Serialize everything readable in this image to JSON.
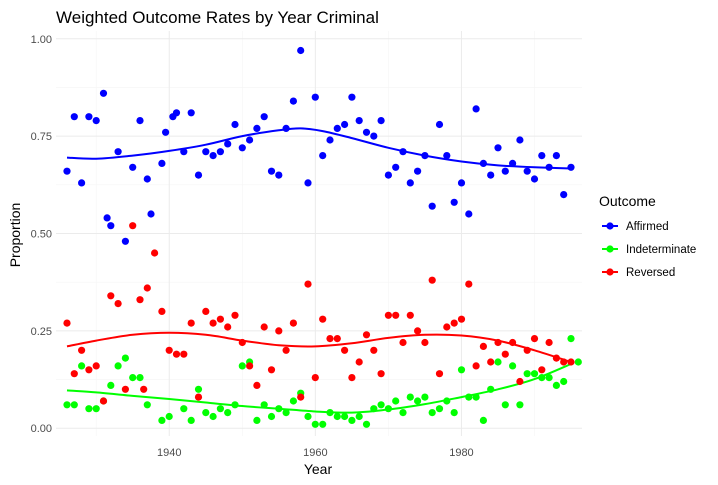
{
  "chart_data": {
    "type": "scatter",
    "title": "Weighted Outcome Rates by Year Criminal",
    "xlabel": "Year",
    "ylabel": "Proportion",
    "xlim": [
      1924.5,
      1996.5
    ],
    "ylim": [
      -0.02,
      1.02
    ],
    "x_ticks": [
      1940,
      1960,
      1980
    ],
    "y_ticks": [
      0.0,
      0.25,
      0.5,
      0.75,
      1.0
    ],
    "y_tick_labels": [
      "0.00",
      "0.25",
      "0.50",
      "0.75",
      "1.00"
    ],
    "grid": true,
    "legend": {
      "title": "Outcome",
      "position": "right"
    },
    "series": [
      {
        "name": "Affirmed",
        "color": "#0000ff",
        "points": [
          [
            1926,
            0.66
          ],
          [
            1927,
            0.8
          ],
          [
            1928,
            0.63
          ],
          [
            1929,
            0.8
          ],
          [
            1930,
            0.79
          ],
          [
            1931,
            0.86
          ],
          [
            1931.5,
            0.54
          ],
          [
            1932,
            0.52
          ],
          [
            1933,
            0.71
          ],
          [
            1934,
            0.48
          ],
          [
            1935,
            0.67
          ],
          [
            1936,
            0.79
          ],
          [
            1937,
            0.64
          ],
          [
            1937.5,
            0.55
          ],
          [
            1939,
            0.68
          ],
          [
            1939.5,
            0.76
          ],
          [
            1940.5,
            0.8
          ],
          [
            1941,
            0.81
          ],
          [
            1942,
            0.71
          ],
          [
            1943,
            0.81
          ],
          [
            1944,
            0.65
          ],
          [
            1945,
            0.71
          ],
          [
            1946,
            0.7
          ],
          [
            1947,
            0.71
          ],
          [
            1948,
            0.73
          ],
          [
            1949,
            0.78
          ],
          [
            1950,
            0.72
          ],
          [
            1951,
            0.74
          ],
          [
            1952,
            0.77
          ],
          [
            1953,
            0.8
          ],
          [
            1954,
            0.66
          ],
          [
            1955,
            0.65
          ],
          [
            1956,
            0.77
          ],
          [
            1957,
            0.84
          ],
          [
            1958,
            0.97
          ],
          [
            1959,
            0.63
          ],
          [
            1960,
            0.85
          ],
          [
            1961,
            0.7
          ],
          [
            1962,
            0.74
          ],
          [
            1963,
            0.77
          ],
          [
            1964,
            0.78
          ],
          [
            1965,
            0.85
          ],
          [
            1966,
            0.79
          ],
          [
            1967,
            0.76
          ],
          [
            1968,
            0.75
          ],
          [
            1969,
            0.79
          ],
          [
            1970,
            0.65
          ],
          [
            1971,
            0.67
          ],
          [
            1972,
            0.71
          ],
          [
            1973,
            0.63
          ],
          [
            1974,
            0.66
          ],
          [
            1975,
            0.7
          ],
          [
            1976,
            0.57
          ],
          [
            1977,
            0.78
          ],
          [
            1978,
            0.7
          ],
          [
            1979,
            0.58
          ],
          [
            1980,
            0.63
          ],
          [
            1981,
            0.55
          ],
          [
            1982,
            0.82
          ],
          [
            1983,
            0.68
          ],
          [
            1984,
            0.65
          ],
          [
            1985,
            0.72
          ],
          [
            1986,
            0.66
          ],
          [
            1987,
            0.68
          ],
          [
            1988,
            0.74
          ],
          [
            1989,
            0.66
          ],
          [
            1990,
            0.64
          ],
          [
            1991,
            0.7
          ],
          [
            1992,
            0.67
          ],
          [
            1993,
            0.7
          ],
          [
            1994,
            0.6
          ],
          [
            1995,
            0.67
          ]
        ],
        "trend": [
          [
            1926,
            0.695
          ],
          [
            1930,
            0.692
          ],
          [
            1935,
            0.7
          ],
          [
            1940,
            0.712
          ],
          [
            1945,
            0.728
          ],
          [
            1950,
            0.75
          ],
          [
            1955,
            0.765
          ],
          [
            1958,
            0.77
          ],
          [
            1961,
            0.763
          ],
          [
            1965,
            0.745
          ],
          [
            1970,
            0.72
          ],
          [
            1975,
            0.7
          ],
          [
            1980,
            0.685
          ],
          [
            1985,
            0.675
          ],
          [
            1990,
            0.67
          ],
          [
            1995,
            0.667
          ]
        ]
      },
      {
        "name": "Indeterminate",
        "color": "#00ff00",
        "points": [
          [
            1926,
            0.06
          ],
          [
            1927,
            0.06
          ],
          [
            1928,
            0.16
          ],
          [
            1929,
            0.05
          ],
          [
            1930,
            0.05
          ],
          [
            1931,
            0.07
          ],
          [
            1932,
            0.11
          ],
          [
            1933,
            0.16
          ],
          [
            1934,
            0.18
          ],
          [
            1935,
            0.13
          ],
          [
            1936,
            0.13
          ],
          [
            1937,
            0.06
          ],
          [
            1939,
            0.02
          ],
          [
            1940,
            0.03
          ],
          [
            1942,
            0.05
          ],
          [
            1943,
            0.02
          ],
          [
            1944,
            0.1
          ],
          [
            1945,
            0.04
          ],
          [
            1946,
            0.03
          ],
          [
            1947,
            0.05
          ],
          [
            1948,
            0.04
          ],
          [
            1949,
            0.06
          ],
          [
            1950,
            0.16
          ],
          [
            1951,
            0.17
          ],
          [
            1952,
            0.02
          ],
          [
            1953,
            0.06
          ],
          [
            1954,
            0.03
          ],
          [
            1955,
            0.05
          ],
          [
            1956,
            0.04
          ],
          [
            1957,
            0.07
          ],
          [
            1958,
            0.09
          ],
          [
            1959,
            0.03
          ],
          [
            1960,
            0.01
          ],
          [
            1961,
            0.01
          ],
          [
            1962,
            0.04
          ],
          [
            1963,
            0.03
          ],
          [
            1964,
            0.03
          ],
          [
            1965,
            0.02
          ],
          [
            1966,
            0.03
          ],
          [
            1967,
            0.01
          ],
          [
            1968,
            0.05
          ],
          [
            1969,
            0.06
          ],
          [
            1970,
            0.05
          ],
          [
            1971,
            0.07
          ],
          [
            1972,
            0.04
          ],
          [
            1973,
            0.08
          ],
          [
            1974,
            0.07
          ],
          [
            1975,
            0.08
          ],
          [
            1976,
            0.04
          ],
          [
            1977,
            0.05
          ],
          [
            1978,
            0.07
          ],
          [
            1979,
            0.04
          ],
          [
            1980,
            0.15
          ],
          [
            1981,
            0.08
          ],
          [
            1982,
            0.08
          ],
          [
            1983,
            0.02
          ],
          [
            1984,
            0.1
          ],
          [
            1985,
            0.17
          ],
          [
            1986,
            0.06
          ],
          [
            1987,
            0.16
          ],
          [
            1988,
            0.06
          ],
          [
            1989,
            0.14
          ],
          [
            1990,
            0.14
          ],
          [
            1991,
            0.13
          ],
          [
            1992,
            0.13
          ],
          [
            1993,
            0.11
          ],
          [
            1994,
            0.12
          ],
          [
            1995,
            0.23
          ],
          [
            1996,
            0.17
          ]
        ],
        "trend": [
          [
            1926,
            0.097
          ],
          [
            1930,
            0.092
          ],
          [
            1935,
            0.083
          ],
          [
            1940,
            0.075
          ],
          [
            1945,
            0.066
          ],
          [
            1950,
            0.057
          ],
          [
            1955,
            0.05
          ],
          [
            1960,
            0.043
          ],
          [
            1965,
            0.04
          ],
          [
            1970,
            0.048
          ],
          [
            1975,
            0.062
          ],
          [
            1980,
            0.08
          ],
          [
            1985,
            0.1
          ],
          [
            1990,
            0.126
          ],
          [
            1995,
            0.165
          ]
        ]
      },
      {
        "name": "Reversed",
        "color": "#ff0000",
        "points": [
          [
            1926,
            0.27
          ],
          [
            1927,
            0.14
          ],
          [
            1928,
            0.2
          ],
          [
            1929,
            0.15
          ],
          [
            1930,
            0.16
          ],
          [
            1931,
            0.07
          ],
          [
            1932,
            0.34
          ],
          [
            1933,
            0.32
          ],
          [
            1934,
            0.1
          ],
          [
            1935,
            0.52
          ],
          [
            1936,
            0.33
          ],
          [
            1936.5,
            0.1
          ],
          [
            1937,
            0.36
          ],
          [
            1938,
            0.45
          ],
          [
            1939,
            0.3
          ],
          [
            1940,
            0.2
          ],
          [
            1941,
            0.19
          ],
          [
            1942,
            0.19
          ],
          [
            1943,
            0.27
          ],
          [
            1944,
            0.08
          ],
          [
            1945,
            0.3
          ],
          [
            1946,
            0.27
          ],
          [
            1947,
            0.28
          ],
          [
            1948,
            0.26
          ],
          [
            1949,
            0.29
          ],
          [
            1950,
            0.22
          ],
          [
            1951,
            0.16
          ],
          [
            1952,
            0.11
          ],
          [
            1953,
            0.26
          ],
          [
            1954,
            0.15
          ],
          [
            1955,
            0.25
          ],
          [
            1956,
            0.2
          ],
          [
            1957,
            0.27
          ],
          [
            1958,
            0.08
          ],
          [
            1959,
            0.37
          ],
          [
            1960,
            0.13
          ],
          [
            1961,
            0.28
          ],
          [
            1962,
            0.23
          ],
          [
            1963,
            0.23
          ],
          [
            1964,
            0.2
          ],
          [
            1965,
            0.13
          ],
          [
            1966,
            0.17
          ],
          [
            1967,
            0.24
          ],
          [
            1968,
            0.2
          ],
          [
            1969,
            0.14
          ],
          [
            1970,
            0.29
          ],
          [
            1971,
            0.29
          ],
          [
            1972,
            0.22
          ],
          [
            1973,
            0.29
          ],
          [
            1974,
            0.25
          ],
          [
            1975,
            0.22
          ],
          [
            1976,
            0.38
          ],
          [
            1977,
            0.14
          ],
          [
            1978,
            0.26
          ],
          [
            1979,
            0.27
          ],
          [
            1980,
            0.28
          ],
          [
            1981,
            0.37
          ],
          [
            1982,
            0.16
          ],
          [
            1983,
            0.21
          ],
          [
            1984,
            0.17
          ],
          [
            1985,
            0.22
          ],
          [
            1986,
            0.19
          ],
          [
            1987,
            0.22
          ],
          [
            1988,
            0.12
          ],
          [
            1989,
            0.2
          ],
          [
            1990,
            0.23
          ],
          [
            1991,
            0.15
          ],
          [
            1992,
            0.22
          ],
          [
            1993,
            0.18
          ],
          [
            1994,
            0.17
          ],
          [
            1995,
            0.17
          ]
        ],
        "trend": [
          [
            1926,
            0.21
          ],
          [
            1930,
            0.225
          ],
          [
            1935,
            0.24
          ],
          [
            1940,
            0.245
          ],
          [
            1945,
            0.24
          ],
          [
            1950,
            0.225
          ],
          [
            1955,
            0.213
          ],
          [
            1960,
            0.21
          ],
          [
            1965,
            0.218
          ],
          [
            1970,
            0.232
          ],
          [
            1975,
            0.24
          ],
          [
            1980,
            0.238
          ],
          [
            1985,
            0.225
          ],
          [
            1990,
            0.2
          ],
          [
            1995,
            0.17
          ]
        ]
      }
    ]
  }
}
